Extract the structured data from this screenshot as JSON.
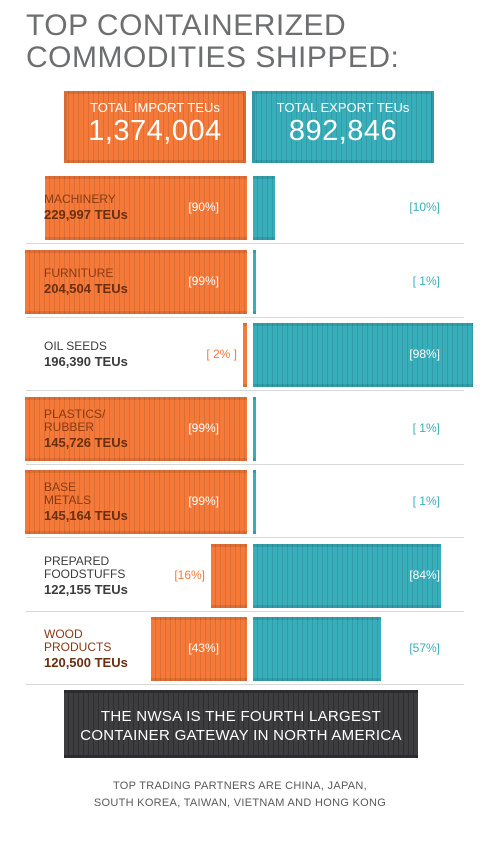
{
  "title": {
    "line1": "TOP CONTAINERIZED",
    "line2": "COMMODITIES SHIPPED:"
  },
  "totals": {
    "import_label": "TOTAL IMPORT TEUs",
    "import_value": "1,374,004",
    "export_label": "TOTAL EXPORT TEUs",
    "export_value": "892,846"
  },
  "colors": {
    "import": "#f57a3a",
    "export": "#38aebb",
    "banner": "#3d3d3f"
  },
  "chart_data": {
    "type": "bar",
    "title": "TOP CONTAINERIZED COMMODITIES SHIPPED:",
    "categories": [
      {
        "name_lines": [
          "MACHINERY"
        ],
        "teus": "229,997 TEUs",
        "import_pct": 90,
        "export_pct": 10,
        "import_label": "[90%]",
        "export_label": "[10%]"
      },
      {
        "name_lines": [
          "FURNITURE"
        ],
        "teus": "204,504 TEUs",
        "import_pct": 99,
        "export_pct": 1,
        "import_label": "[99%]",
        "export_label": "[ 1%]"
      },
      {
        "name_lines": [
          "OIL SEEDS"
        ],
        "teus": "196,390 TEUs",
        "import_pct": 2,
        "export_pct": 98,
        "import_label": "[ 2% ]",
        "export_label": "[98%]"
      },
      {
        "name_lines": [
          "PLASTICS/",
          "RUBBER"
        ],
        "teus": "145,726 TEUs",
        "import_pct": 99,
        "export_pct": 1,
        "import_label": "[99%]",
        "export_label": "[ 1%]"
      },
      {
        "name_lines": [
          "BASE",
          "METALS"
        ],
        "teus": "145,164 TEUs",
        "import_pct": 99,
        "export_pct": 1,
        "import_label": "[99%]",
        "export_label": "[ 1%]"
      },
      {
        "name_lines": [
          "PREPARED",
          "FOODSTUFFS"
        ],
        "teus": "122,155 TEUs",
        "import_pct": 16,
        "export_pct": 84,
        "import_label": "[16%]",
        "export_label": "[84%]"
      },
      {
        "name_lines": [
          "WOOD",
          "PRODUCTS"
        ],
        "teus": "120,500 TEUs",
        "import_pct": 43,
        "export_pct": 57,
        "import_label": "[43%]",
        "export_label": "[57%]"
      }
    ],
    "series": [
      {
        "name": "TOTAL IMPORT TEUs",
        "values": [
          90,
          99,
          2,
          99,
          99,
          16,
          43
        ]
      },
      {
        "name": "TOTAL EXPORT TEUs",
        "values": [
          10,
          1,
          98,
          1,
          1,
          84,
          57
        ]
      }
    ]
  },
  "banner": {
    "line1": "THE NWSA IS THE FOURTH LARGEST",
    "line2": "CONTAINER GATEWAY IN NORTH AMERICA"
  },
  "footer": {
    "line1": "TOP TRADING PARTNERS ARE CHINA, JAPAN,",
    "line2": "SOUTH KOREA, TAIWAN, VIETNAM AND HONG KONG"
  }
}
